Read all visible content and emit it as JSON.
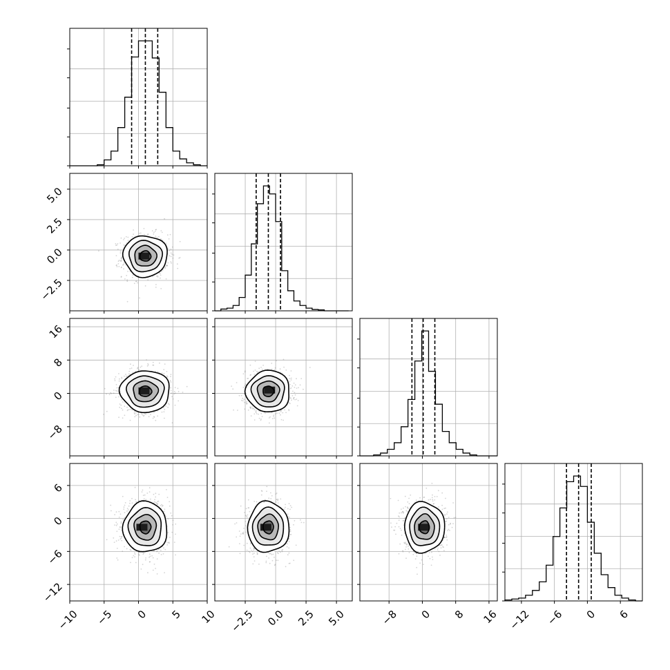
{
  "chart_data": {
    "type": "corner",
    "title": "",
    "grid": true,
    "quantile_lines": "dashed",
    "parameters": [
      {
        "range": [
          -10,
          10
        ],
        "ticks": [
          -10,
          -5,
          0,
          5,
          10
        ],
        "tick_labels": [
          "−10",
          "−5",
          "0",
          "5",
          "10"
        ],
        "quantiles": [
          -1.0,
          1.0,
          2.8
        ],
        "hist": {
          "edges": [
            -10,
            -9,
            -8,
            -7,
            -6,
            -5,
            -4,
            -3,
            -2,
            -1,
            0,
            1,
            2,
            3,
            4,
            5,
            6,
            7,
            8,
            9,
            10
          ],
          "counts": [
            0,
            0,
            0,
            0,
            2,
            12,
            30,
            78,
            140,
            222,
            255,
            255,
            220,
            150,
            78,
            30,
            14,
            6,
            2,
            0
          ]
        }
      },
      {
        "range": [
          -5,
          6.3
        ],
        "ticks": [
          -2.5,
          0.0,
          2.5,
          5.0
        ],
        "tick_labels": [
          "−2.5",
          "0.0",
          "2.5",
          "5.0"
        ],
        "quantiles": [
          -1.6,
          -0.6,
          0.4
        ],
        "hist": {
          "edges": [
            -5.0,
            -4.5,
            -4.0,
            -3.5,
            -3.0,
            -2.5,
            -2.0,
            -1.5,
            -1.0,
            -0.5,
            0.0,
            0.5,
            1.0,
            1.5,
            2.0,
            2.5,
            3.0,
            3.5,
            4.0,
            4.5,
            5.0,
            5.5,
            6.0
          ],
          "counts": [
            0,
            4,
            6,
            12,
            30,
            80,
            150,
            240,
            280,
            262,
            200,
            90,
            45,
            22,
            12,
            6,
            3,
            2,
            0,
            0,
            0,
            0
          ]
        }
      },
      {
        "range": [
          -15,
          18
        ],
        "ticks": [
          -8,
          0,
          8,
          16
        ],
        "tick_labels": [
          "−8",
          "0",
          "8",
          "16"
        ],
        "quantiles": [
          -2.5,
          0.2,
          3.0
        ],
        "hist": {
          "edges": [
            -15,
            -13.35,
            -11.7,
            -10.05,
            -8.4,
            -6.75,
            -5.1,
            -3.45,
            -1.8,
            -0.15,
            1.5,
            3.15,
            4.8,
            6.45,
            8.1,
            9.75,
            11.4,
            13.05,
            14.7,
            16.35,
            18
          ],
          "counts": [
            0,
            0,
            2,
            6,
            14,
            28,
            62,
            120,
            202,
            266,
            180,
            110,
            52,
            28,
            14,
            6,
            2,
            0,
            0,
            0
          ]
        }
      },
      {
        "range": [
          -15,
          10
        ],
        "ticks": [
          -12,
          -6,
          0,
          6
        ],
        "tick_labels": [
          "−12",
          "−6",
          "0",
          "6"
        ],
        "quantiles": [
          -3.8,
          -1.6,
          0.7
        ],
        "hist": {
          "edges": [
            -15,
            -13.75,
            -12.5,
            -11.25,
            -10,
            -8.75,
            -7.5,
            -6.25,
            -5,
            -3.75,
            -2.5,
            -1.25,
            0,
            1.25,
            2.5,
            3.75,
            5,
            6.25,
            7.5,
            8.75,
            10
          ],
          "counts": [
            2,
            4,
            6,
            12,
            22,
            40,
            75,
            135,
            195,
            250,
            262,
            240,
            165,
            100,
            55,
            28,
            12,
            6,
            2,
            0
          ]
        }
      }
    ],
    "pairs": [
      {
        "x": 0,
        "y": 1,
        "mean": [
          1.0,
          -0.5
        ],
        "sd": [
          1.6,
          0.85
        ],
        "corr": 0.0,
        "peak": [
          0.8,
          -0.5
        ]
      },
      {
        "x": 0,
        "y": 2,
        "mean": [
          1.0,
          0.5
        ],
        "sd": [
          1.8,
          2.5
        ],
        "corr": 0.0,
        "peak": [
          0.8,
          0.6
        ]
      },
      {
        "x": 1,
        "y": 2,
        "mean": [
          -0.6,
          0.5
        ],
        "sd": [
          0.9,
          2.5
        ],
        "corr": 0.0,
        "peak": [
          -0.5,
          0.8
        ]
      },
      {
        "x": 0,
        "y": 3,
        "mean": [
          1.0,
          -1.6
        ],
        "sd": [
          1.6,
          2.3
        ],
        "corr": 0.0,
        "peak": [
          0.5,
          -1.6
        ]
      },
      {
        "x": 1,
        "y": 3,
        "mean": [
          -0.6,
          -1.6
        ],
        "sd": [
          0.85,
          2.3
        ],
        "corr": 0.0,
        "peak": [
          -0.8,
          -1.6
        ]
      },
      {
        "x": 2,
        "y": 3,
        "mean": [
          0.5,
          -1.6
        ],
        "sd": [
          2.4,
          2.3
        ],
        "corr": 0.0,
        "peak": [
          0.3,
          -1.6
        ]
      }
    ],
    "contour_levels_sigma": [
      0.5,
      1.0,
      1.5,
      2.0
    ]
  }
}
